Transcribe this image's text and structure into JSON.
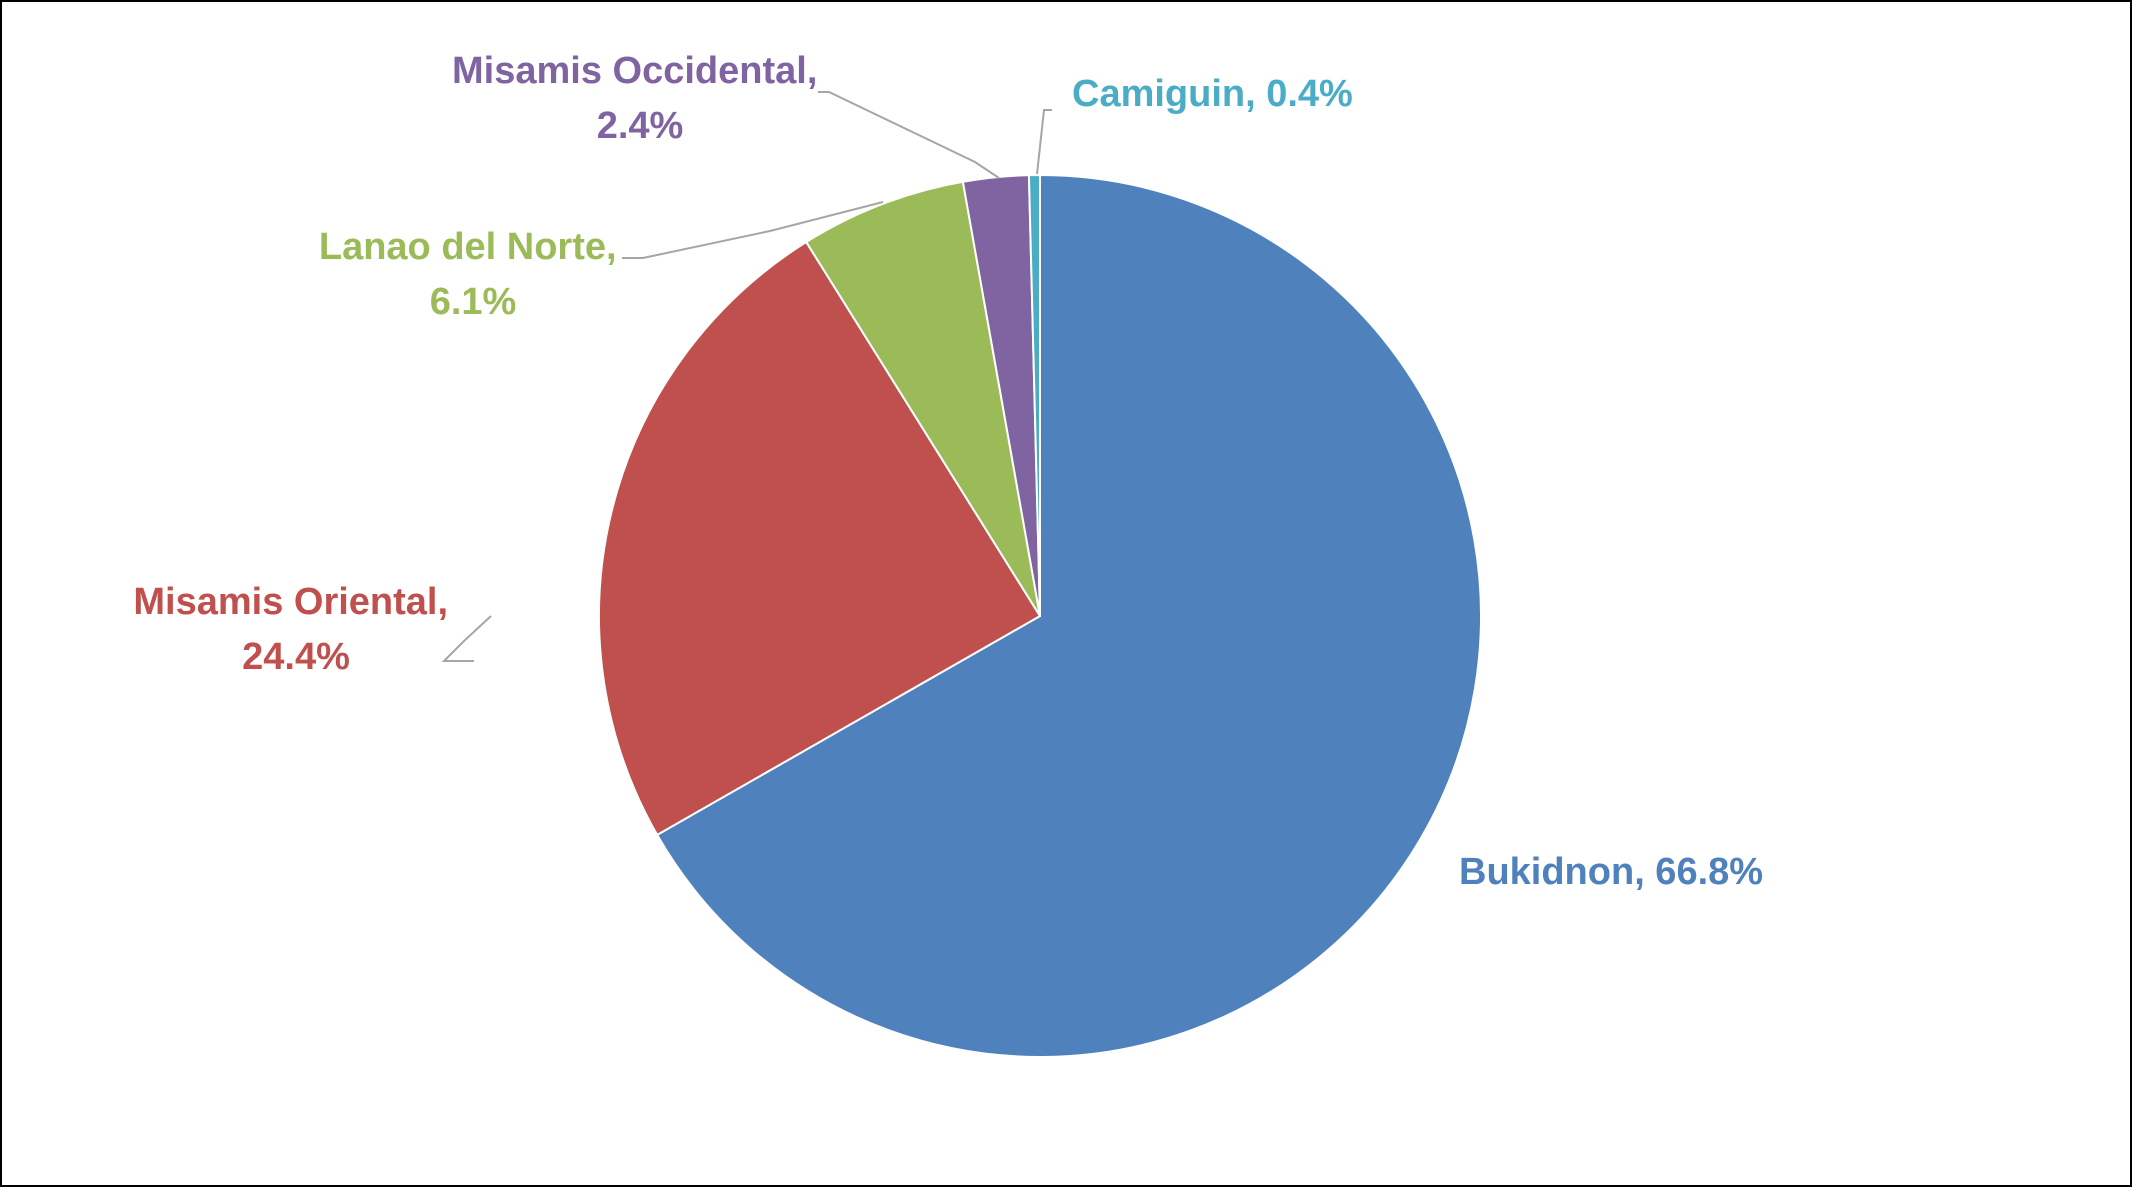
{
  "chart_data": {
    "type": "pie",
    "title": "",
    "start_angle_deg": 0,
    "direction": "clockwise",
    "slices": [
      {
        "category": "Bukidnon",
        "value": 66.8,
        "label": "Bukidnon, 66.8%",
        "color": "#4F81BD"
      },
      {
        "category": "Misamis Oriental",
        "value": 24.4,
        "label_line1": "Misamis Oriental,",
        "label_line2": "24.4%",
        "color": "#C0504D"
      },
      {
        "category": "Lanao del Norte",
        "value": 6.1,
        "label_line1": "Lanao del Norte,",
        "label_line2": "6.1%",
        "color": "#9BBB59"
      },
      {
        "category": "Misamis Occidental",
        "value": 2.4,
        "label_line1": "Misamis Occidental,",
        "label_line2": "2.4%",
        "color": "#8064A2"
      },
      {
        "category": "Camiguin",
        "value": 0.4,
        "label": "Camiguin, 0.4%",
        "color": "#4BACC6"
      }
    ],
    "legend": "none",
    "data_labels": "outside-with-leader-lines"
  }
}
